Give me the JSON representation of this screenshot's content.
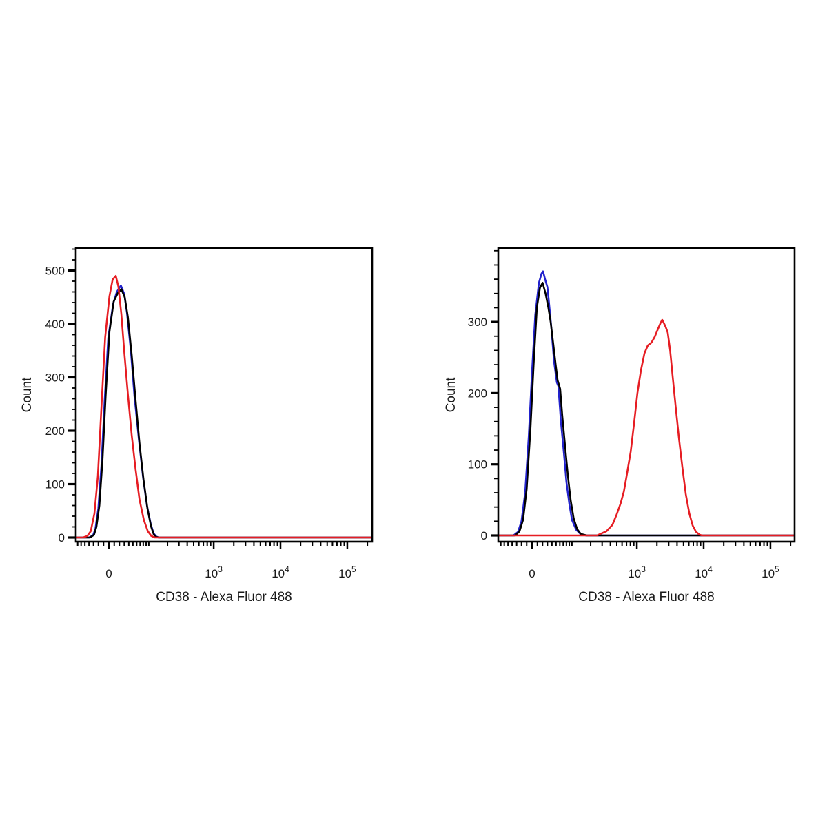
{
  "page": {
    "background": "#ffffff",
    "text_color": "#1a1a1a",
    "frame_color": "#000000"
  },
  "chart_data": [
    {
      "type": "line",
      "subtype": "flow-cytometry-histogram-overlay",
      "title": "",
      "xlabel": "CD38 - Alexa Fluor 488",
      "ylabel": "Count",
      "grid": false,
      "legend": null,
      "x_axis": {
        "scale": "biexponential",
        "xlim": [
          -76,
          234000
        ],
        "labeled_ticks": [
          {
            "label": "0",
            "value": 0
          },
          {
            "base": "10",
            "exp": "3",
            "value": 1000
          },
          {
            "base": "10",
            "exp": "4",
            "value": 10000
          },
          {
            "base": "10",
            "exp": "5",
            "value": 100000
          }
        ]
      },
      "y_axis": {
        "ticks": [
          0,
          100,
          200,
          300,
          400,
          500
        ],
        "minor_step": 20,
        "ylim": [
          0,
          541
        ]
      },
      "series": [
        {
          "name": "blue",
          "color": "#2222cc",
          "points": [
            [
              -76,
              0
            ],
            [
              -40,
              0
            ],
            [
              -31,
              4
            ],
            [
              -26,
              16
            ],
            [
              -20,
              55
            ],
            [
              -14,
              135
            ],
            [
              -8,
              255
            ],
            [
              -1,
              375
            ],
            [
              8,
              438
            ],
            [
              15,
              460
            ],
            [
              23,
              472
            ],
            [
              30,
              456
            ],
            [
              36,
              420
            ],
            [
              45,
              350
            ],
            [
              54,
              265
            ],
            [
              66,
              185
            ],
            [
              79,
              115
            ],
            [
              93,
              60
            ],
            [
              108,
              25
            ],
            [
              120,
              8
            ],
            [
              132,
              2
            ],
            [
              145,
              0
            ],
            [
              234000,
              0
            ]
          ]
        },
        {
          "name": "black",
          "color": "#000000",
          "points": [
            [
              -76,
              0
            ],
            [
              -38,
              0
            ],
            [
              -29,
              5
            ],
            [
              -24,
              20
            ],
            [
              -18,
              60
            ],
            [
              -12,
              145
            ],
            [
              -6,
              265
            ],
            [
              1,
              385
            ],
            [
              9,
              442
            ],
            [
              17,
              458
            ],
            [
              24,
              465
            ],
            [
              31,
              450
            ],
            [
              38,
              413
            ],
            [
              47,
              342
            ],
            [
              57,
              258
            ],
            [
              68,
              178
            ],
            [
              81,
              108
            ],
            [
              95,
              54
            ],
            [
              109,
              21
            ],
            [
              121,
              6
            ],
            [
              133,
              1
            ],
            [
              146,
              0
            ],
            [
              234000,
              0
            ]
          ]
        },
        {
          "name": "red",
          "color": "#e61d23",
          "points": [
            [
              -76,
              0
            ],
            [
              -55,
              0
            ],
            [
              -44,
              3
            ],
            [
              -36,
              12
            ],
            [
              -28,
              45
            ],
            [
              -21,
              115
            ],
            [
              -14,
              245
            ],
            [
              -7,
              375
            ],
            [
              1,
              452
            ],
            [
              7,
              483
            ],
            [
              13,
              490
            ],
            [
              18,
              470
            ],
            [
              24,
              418
            ],
            [
              30,
              348
            ],
            [
              38,
              268
            ],
            [
              47,
              192
            ],
            [
              57,
              128
            ],
            [
              68,
              72
            ],
            [
              82,
              33
            ],
            [
              96,
              12
            ],
            [
              110,
              3
            ],
            [
              126,
              0
            ],
            [
              234000,
              0
            ]
          ]
        }
      ]
    },
    {
      "type": "line",
      "subtype": "flow-cytometry-histogram-overlay",
      "title": "",
      "xlabel": "CD38 - Alexa Fluor 488",
      "ylabel": "Count",
      "grid": false,
      "legend": null,
      "x_axis": {
        "scale": "biexponential",
        "xlim": [
          -76,
          234000
        ],
        "labeled_ticks": [
          {
            "label": "0",
            "value": 0
          },
          {
            "base": "10",
            "exp": "3",
            "value": 1000
          },
          {
            "base": "10",
            "exp": "4",
            "value": 10000
          },
          {
            "base": "10",
            "exp": "5",
            "value": 100000
          }
        ]
      },
      "y_axis": {
        "ticks": [
          0,
          100,
          200,
          300
        ],
        "minor_step": 20,
        "ylim": [
          0,
          404
        ]
      },
      "series": [
        {
          "name": "blue",
          "color": "#2222cc",
          "points": [
            [
              -76,
              0
            ],
            [
              -37,
              0
            ],
            [
              -27,
              5
            ],
            [
              -20,
              20
            ],
            [
              -13,
              60
            ],
            [
              -6,
              140
            ],
            [
              0,
              230
            ],
            [
              6,
              310
            ],
            [
              13,
              355
            ],
            [
              18,
              368
            ],
            [
              21,
              371
            ],
            [
              25,
              360
            ],
            [
              30,
              349
            ],
            [
              33,
              330
            ],
            [
              39,
              290
            ],
            [
              45,
              245
            ],
            [
              52,
              215
            ],
            [
              56,
              210
            ],
            [
              63,
              160
            ],
            [
              72,
              115
            ],
            [
              80,
              75
            ],
            [
              90,
              45
            ],
            [
              100,
              22
            ],
            [
              118,
              8
            ],
            [
              138,
              2
            ],
            [
              168,
              0
            ],
            [
              234000,
              0
            ]
          ]
        },
        {
          "name": "black",
          "color": "#000000",
          "points": [
            [
              -76,
              0
            ],
            [
              -33,
              0
            ],
            [
              -24,
              6
            ],
            [
              -17,
              22
            ],
            [
              -10,
              65
            ],
            [
              -3,
              150
            ],
            [
              3,
              240
            ],
            [
              9,
              320
            ],
            [
              15,
              348
            ],
            [
              20,
              355
            ],
            [
              26,
              340
            ],
            [
              32,
              320
            ],
            [
              37,
              300
            ],
            [
              43,
              270
            ],
            [
              49,
              240
            ],
            [
              54,
              218
            ],
            [
              58,
              211
            ],
            [
              61,
              206
            ],
            [
              67,
              168
            ],
            [
              76,
              124
            ],
            [
              85,
              84
            ],
            [
              95,
              50
            ],
            [
              107,
              24
            ],
            [
              122,
              9
            ],
            [
              140,
              2
            ],
            [
              175,
              0
            ],
            [
              234000,
              0
            ]
          ]
        },
        {
          "name": "red",
          "color": "#e61d23",
          "points": [
            [
              -76,
              0
            ],
            [
              250,
              0
            ],
            [
              350,
              6
            ],
            [
              430,
              15
            ],
            [
              500,
              30
            ],
            [
              570,
              45
            ],
            [
              640,
              62
            ],
            [
              715,
              88
            ],
            [
              810,
              118
            ],
            [
              910,
              158
            ],
            [
              1020,
              200
            ],
            [
              1150,
              232
            ],
            [
              1300,
              256
            ],
            [
              1460,
              267
            ],
            [
              1650,
              271
            ],
            [
              1850,
              279
            ],
            [
              2090,
              291
            ],
            [
              2250,
              298
            ],
            [
              2400,
              303
            ],
            [
              2550,
              298
            ],
            [
              2700,
              293
            ],
            [
              2900,
              285
            ],
            [
              3150,
              260
            ],
            [
              3450,
              222
            ],
            [
              3800,
              182
            ],
            [
              4250,
              138
            ],
            [
              4800,
              96
            ],
            [
              5400,
              58
            ],
            [
              6100,
              31
            ],
            [
              6850,
              14
            ],
            [
              7700,
              5
            ],
            [
              8700,
              1
            ],
            [
              9500,
              0
            ],
            [
              234000,
              0
            ]
          ]
        }
      ]
    }
  ]
}
